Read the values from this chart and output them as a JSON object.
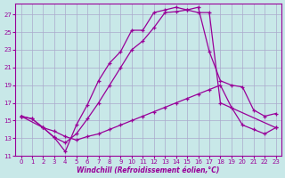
{
  "xlabel": "Windchill (Refroidissement éolien,°C)",
  "bg_color": "#c8e8e8",
  "grid_color": "#aaaacc",
  "line_color": "#990099",
  "xlim": [
    -0.5,
    23.5
  ],
  "ylim": [
    11,
    28.2
  ],
  "xticks": [
    0,
    1,
    2,
    3,
    4,
    5,
    6,
    7,
    8,
    9,
    10,
    11,
    12,
    13,
    14,
    15,
    16,
    17,
    18,
    19,
    20,
    21,
    22,
    23
  ],
  "yticks": [
    11,
    13,
    15,
    17,
    19,
    21,
    23,
    25,
    27
  ],
  "curve1_x": [
    0,
    1,
    2,
    3,
    4,
    5,
    6,
    7,
    8,
    9,
    10,
    11,
    12,
    13,
    14,
    15,
    16,
    17,
    18,
    23
  ],
  "curve1_y": [
    15.5,
    15.2,
    14.2,
    13.1,
    11.5,
    14.5,
    16.8,
    19.5,
    21.5,
    22.8,
    25.2,
    25.2,
    27.2,
    27.5,
    27.8,
    27.5,
    27.2,
    27.2,
    17.0,
    14.2
  ],
  "curve2_x": [
    0,
    2,
    3,
    4,
    5,
    6,
    7,
    8,
    9,
    10,
    11,
    12,
    13,
    14,
    15,
    16,
    17,
    18,
    19,
    20,
    21,
    22,
    23
  ],
  "curve2_y": [
    15.5,
    14.2,
    13.1,
    12.5,
    13.5,
    15.2,
    17.0,
    19.0,
    21.0,
    23.0,
    24.0,
    25.5,
    27.2,
    27.3,
    27.5,
    27.8,
    22.8,
    19.5,
    19.0,
    18.8,
    16.2,
    15.5,
    15.8
  ],
  "curve3_x": [
    0,
    1,
    2,
    3,
    4,
    5,
    6,
    7,
    8,
    9,
    10,
    11,
    12,
    13,
    14,
    15,
    16,
    17,
    18,
    19,
    20,
    21,
    22,
    23
  ],
  "curve3_y": [
    15.5,
    15.2,
    14.2,
    13.8,
    13.2,
    12.8,
    13.2,
    13.5,
    14.0,
    14.5,
    15.0,
    15.5,
    16.0,
    16.5,
    17.0,
    17.5,
    18.0,
    18.5,
    19.0,
    16.5,
    14.5,
    14.0,
    13.5,
    14.2
  ]
}
